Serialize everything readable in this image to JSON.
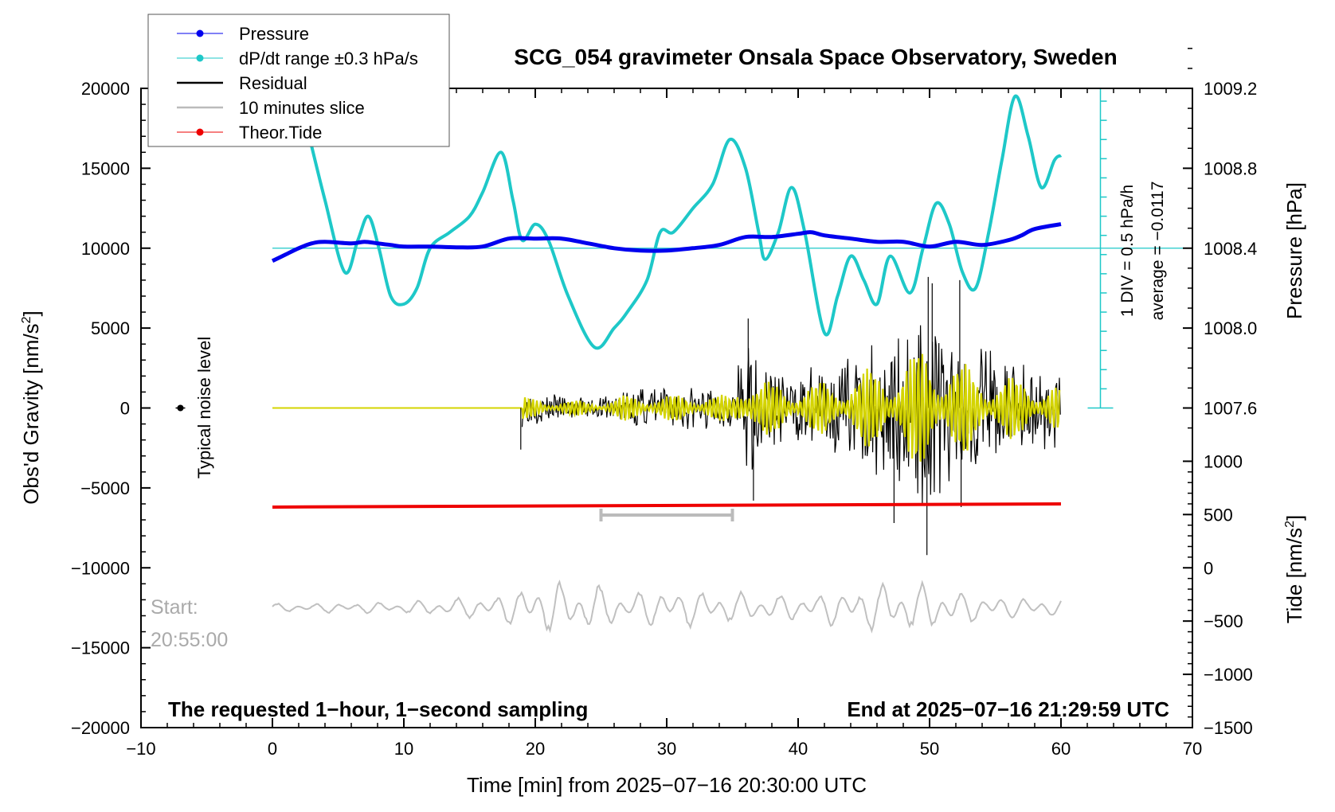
{
  "chart_data": {
    "type": "line",
    "title": "SCG_054 gravimeter Onsala Space Observatory, Sweden",
    "xlabel": "Time [min] from 2025−07−16 20:30:00 UTC",
    "ylabel_left_main": "Obs'd Gravity [nm/s",
    "ylabel_left_sup": "2",
    "ylabel_left_tail": "]",
    "ylabel_right_pressure": "Pressure [hPa]",
    "ylabel_right_tide_main": "Tide [nm/s",
    "ylabel_right_tide_sup": "2",
    "ylabel_right_tide_tail": "]",
    "xlim": [
      -10,
      70
    ],
    "ylim_left": [
      -20000,
      20000
    ],
    "x_ticks": [
      -10,
      0,
      10,
      20,
      30,
      40,
      50,
      60,
      70
    ],
    "x_tick_labels": [
      "−10",
      "0",
      "10",
      "20",
      "30",
      "40",
      "50",
      "60",
      "70"
    ],
    "y_left_ticks": [
      20000,
      15000,
      10000,
      5000,
      0,
      -5000,
      -10000,
      -15000,
      -20000
    ],
    "y_left_tick_labels": [
      "20000",
      "15000",
      "10000",
      "5000",
      "0",
      "−5000",
      "−10000",
      "−15000",
      "−20000"
    ],
    "pressure_axis": {
      "ticks": [
        1009.2,
        1008.8,
        1008.4,
        1008.0,
        1007.6
      ],
      "tick_labels": [
        "1009.2",
        "1008.8",
        "1008.4",
        "1008.0",
        "1007.6"
      ],
      "reference_value": 1008.4,
      "hpa_per_gravity_unit": 8e-05
    },
    "tide_axis": {
      "ticks": [
        1000,
        500,
        0,
        -500,
        -1000,
        -1500
      ],
      "tick_labels": [
        "1000",
        "500",
        "0",
        "−500",
        "−1000",
        "−1500"
      ],
      "zero_at_gravity": -10000,
      "gravity_per_tide_unit": 6.667
    },
    "legend": {
      "placement": "top-left",
      "entries": [
        {
          "label": "Pressure",
          "color": "#0000ee",
          "marker": "dot"
        },
        {
          "label": "dP/dt range ±0.3 hPa/s",
          "color": "#1ec8c8",
          "marker": "dot"
        },
        {
          "label": "Residual",
          "color": "#000000",
          "marker": "line"
        },
        {
          "label": "10 minutes slice",
          "color": "#bbbbbb",
          "marker": "line"
        },
        {
          "label": "Theor.Tide",
          "color": "#ee0000",
          "marker": "dot"
        }
      ]
    },
    "pressure_series": {
      "name": "Pressure",
      "color": "#0000ee",
      "x": [
        0,
        1,
        2,
        3,
        4,
        6,
        7,
        8,
        9,
        10,
        12,
        14,
        16,
        18,
        20,
        22,
        24,
        26,
        28,
        30,
        32,
        34,
        36,
        38,
        40,
        41,
        42,
        44,
        46,
        48,
        50,
        52,
        54,
        56,
        57,
        58,
        60
      ],
      "y": [
        9200,
        9600,
        10000,
        10300,
        10400,
        10300,
        10400,
        10300,
        10200,
        10100,
        10100,
        10050,
        10100,
        10600,
        10600,
        10600,
        10300,
        10000,
        9850,
        9850,
        10000,
        10200,
        10700,
        10700,
        10900,
        11000,
        10800,
        10600,
        10400,
        10400,
        10100,
        10400,
        10200,
        10500,
        10800,
        11200,
        11500
      ]
    },
    "dpdt_series": {
      "name": "dP/dt range ±0.3 hPa/s",
      "color": "#1ec8c8",
      "x": [
        2.8,
        4,
        5.5,
        6.5,
        7.3,
        8.1,
        9,
        10,
        11,
        12,
        13.5,
        15,
        16,
        17.4,
        18.3,
        19,
        20,
        21,
        22.5,
        24.5,
        26,
        27,
        28.5,
        29.5,
        30.5,
        32,
        33.5,
        34.8,
        36,
        37,
        37.5,
        38.5,
        39.5,
        40.5,
        42,
        43,
        44,
        45,
        46,
        47,
        48.5,
        49.5,
        50.5,
        51.5,
        52.5,
        53.5,
        54.5,
        55.5,
        56.5,
        57.5,
        58.5,
        59.5,
        60
      ],
      "y": [
        17000,
        13000,
        8500,
        10500,
        12000,
        10000,
        7000,
        6500,
        7500,
        10000,
        11000,
        12000,
        13500,
        16000,
        13000,
        10500,
        11500,
        10500,
        7000,
        3800,
        5000,
        6000,
        8000,
        11000,
        11000,
        12500,
        14000,
        16800,
        15000,
        11000,
        9300,
        11000,
        13800,
        11000,
        4700,
        7000,
        9500,
        8000,
        6500,
        9500,
        7200,
        10000,
        12800,
        11500,
        8500,
        7500,
        11000,
        15500,
        19500,
        17000,
        13800,
        15500,
        15800
      ]
    },
    "residual_series": {
      "name": "Residual",
      "color": "#000000",
      "flat_until_x": 19,
      "start_x": 19,
      "end_x": 60,
      "envelope_x": [
        19,
        22,
        25,
        27,
        30,
        33,
        35,
        36,
        37,
        40,
        43,
        46,
        48,
        50,
        52,
        55,
        58,
        60
      ],
      "envelope_y": [
        1200,
        800,
        800,
        1400,
        1400,
        1500,
        1300,
        4800,
        3000,
        2500,
        3000,
        4500,
        5200,
        7000,
        5000,
        3500,
        3000,
        2400
      ],
      "spikes": [
        {
          "x": 18.9,
          "y": -2600
        },
        {
          "x": 36.2,
          "y": 5600
        },
        {
          "x": 36.6,
          "y": -5800
        },
        {
          "x": 47.3,
          "y": -7200
        },
        {
          "x": 49.8,
          "y": -9200
        },
        {
          "x": 49.9,
          "y": 8200
        },
        {
          "x": 50.2,
          "y": 7800
        },
        {
          "x": 52.3,
          "y": 8000
        },
        {
          "x": 52.4,
          "y": -6200
        }
      ]
    },
    "filtered_series": {
      "name": "filtered residual",
      "color": "#d4d400",
      "start_x": 19,
      "end_x": 60,
      "amplitude_scale": 0.6
    },
    "tide_series": {
      "name": "Theor.Tide",
      "color": "#ee0000",
      "x": [
        0,
        60
      ],
      "y": [
        -6200,
        -6000
      ]
    },
    "slice_bracket": {
      "x_start": 25,
      "x_end": 35,
      "y": -6700,
      "color": "#bbbbbb"
    },
    "slice_series": {
      "name": "10 minutes slice",
      "color": "#c0c0c0",
      "x_start": 0,
      "x_end": 60,
      "base_y": -12500,
      "envelope_x": [
        0,
        10,
        17,
        20,
        24,
        27,
        30,
        36,
        40,
        44,
        47,
        50,
        54,
        60
      ],
      "envelope_y": [
        300,
        400,
        900,
        1800,
        1800,
        1000,
        1400,
        1000,
        900,
        1400,
        1800,
        1700,
        900,
        600
      ]
    },
    "pressure_scale_bar": {
      "x": 63,
      "y_top": 20000,
      "y_bottom": 0,
      "ticks_every": 1200,
      "color": "#1ec8c8"
    },
    "reference_line_y": 10000,
    "noise_marker": {
      "x": -7,
      "y": 0
    },
    "annotations": {
      "noise_level": "Typical noise level",
      "div_label": "1 DIV = 0.5 hPa/h",
      "average_label": "average = −0.0117",
      "start_label": "Start:",
      "start_time": "20:55:00",
      "bottom_left": "The requested 1−hour, 1−second sampling",
      "bottom_right": "End at 2025−07−16 21:29:59 UTC"
    }
  }
}
